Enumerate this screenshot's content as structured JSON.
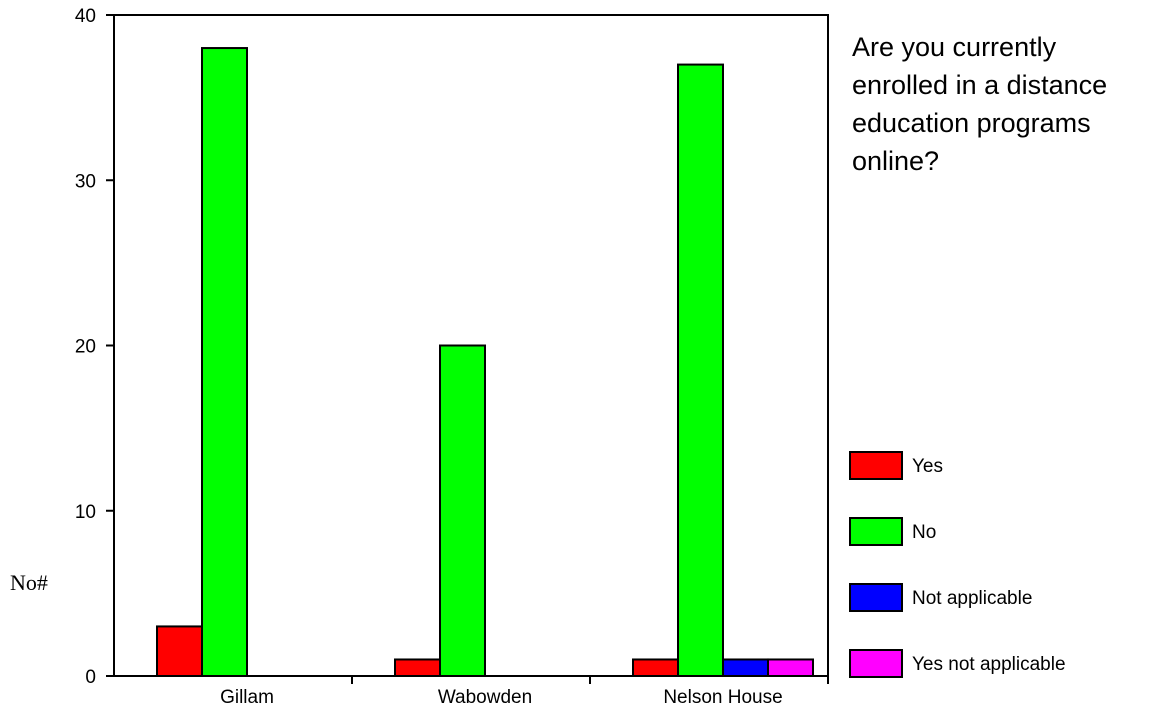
{
  "chart_data": {
    "type": "bar",
    "title_lines": [
      "Are you currently",
      "enrolled in a distance",
      "education programs",
      "online?"
    ],
    "xlabel": "",
    "ylabel": "No#",
    "categories": [
      "Gillam",
      "Wabowden",
      "Nelson House"
    ],
    "series": [
      {
        "name": "Yes",
        "color": "#ff0000",
        "values": [
          3,
          1,
          1
        ]
      },
      {
        "name": "No",
        "color": "#00ff00",
        "values": [
          38,
          20,
          37
        ]
      },
      {
        "name": "Not applicable",
        "color": "#0000ff",
        "values": [
          0,
          0,
          1
        ]
      },
      {
        "name": "Yes not applicable",
        "color": "#ff00ff",
        "values": [
          0,
          0,
          1
        ]
      }
    ],
    "ylim": [
      0,
      40
    ],
    "yticks": [
      0,
      10,
      20,
      30,
      40
    ],
    "grid": false,
    "legend_position": "right"
  }
}
